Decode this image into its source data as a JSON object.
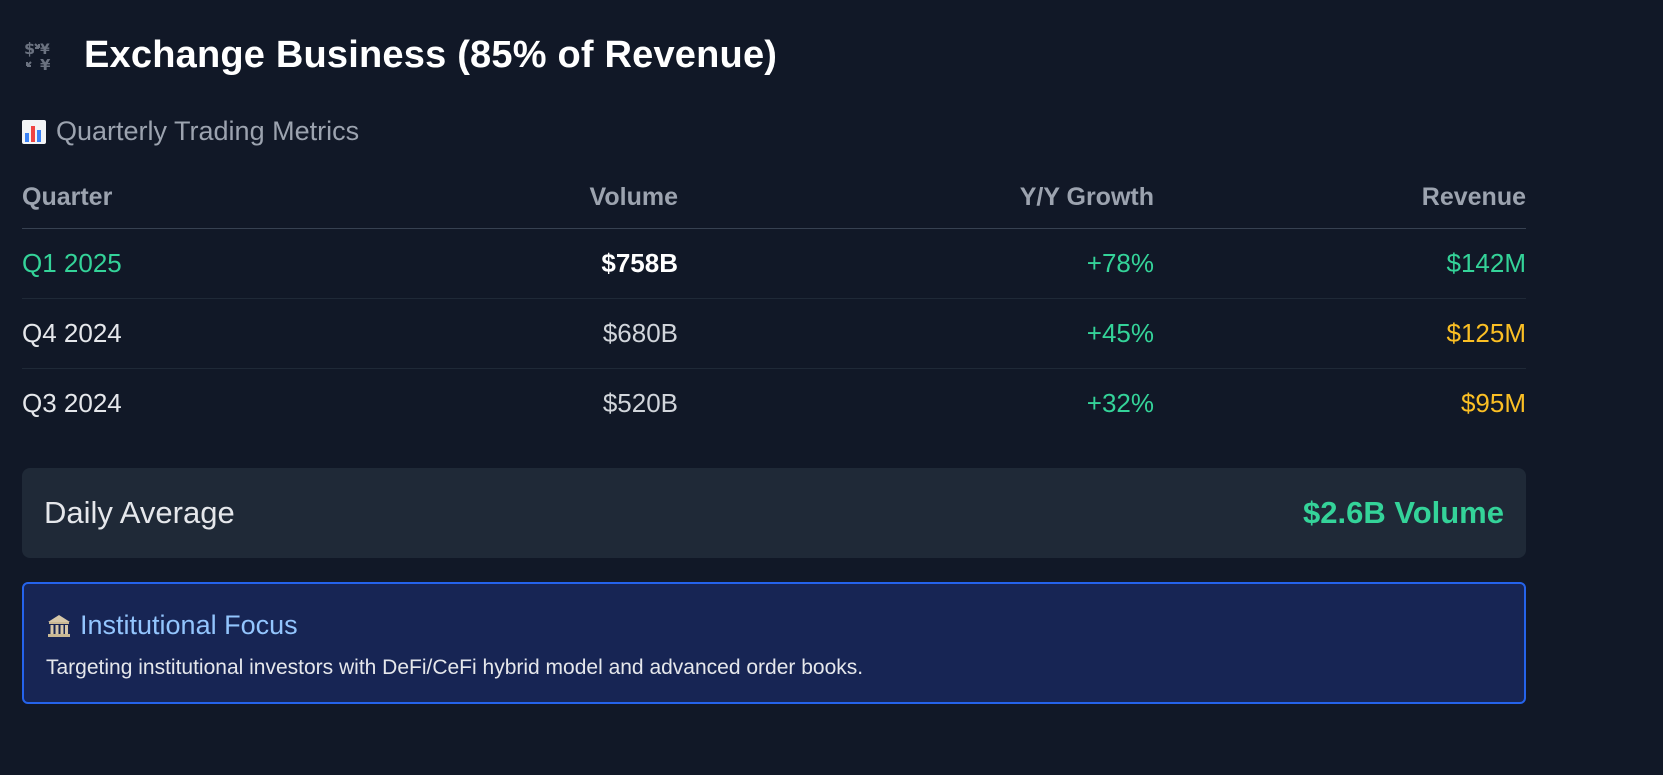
{
  "header": {
    "icon": "currency-exchange-icon",
    "title": "Exchange Business (85% of Revenue)"
  },
  "section": {
    "icon": "bar-chart-icon",
    "title": "Quarterly Trading Metrics"
  },
  "table": {
    "headers": {
      "quarter": "Quarter",
      "volume": "Volume",
      "growth": "Y/Y Growth",
      "revenue": "Revenue"
    },
    "rows": [
      {
        "quarter": "Q1 2025",
        "volume": "$758B",
        "growth": "+78%",
        "revenue": "$142M"
      },
      {
        "quarter": "Q4 2024",
        "volume": "$680B",
        "growth": "+45%",
        "revenue": "$125M"
      },
      {
        "quarter": "Q3 2024",
        "volume": "$520B",
        "growth": "+32%",
        "revenue": "$95M"
      }
    ]
  },
  "daily": {
    "label": "Daily Average",
    "value": "$2.6B Volume"
  },
  "focus": {
    "icon": "bank-icon",
    "title": "Institutional Focus",
    "text": "Targeting institutional investors with DeFi/CeFi hybrid model and advanced order books."
  },
  "colors": {
    "background": "#111827",
    "card": "#1f2937",
    "accent_green": "#34d399",
    "accent_amber": "#fbbf24",
    "focus_bg": "#172554",
    "focus_border": "#2563eb",
    "focus_title": "#93c5fd"
  }
}
